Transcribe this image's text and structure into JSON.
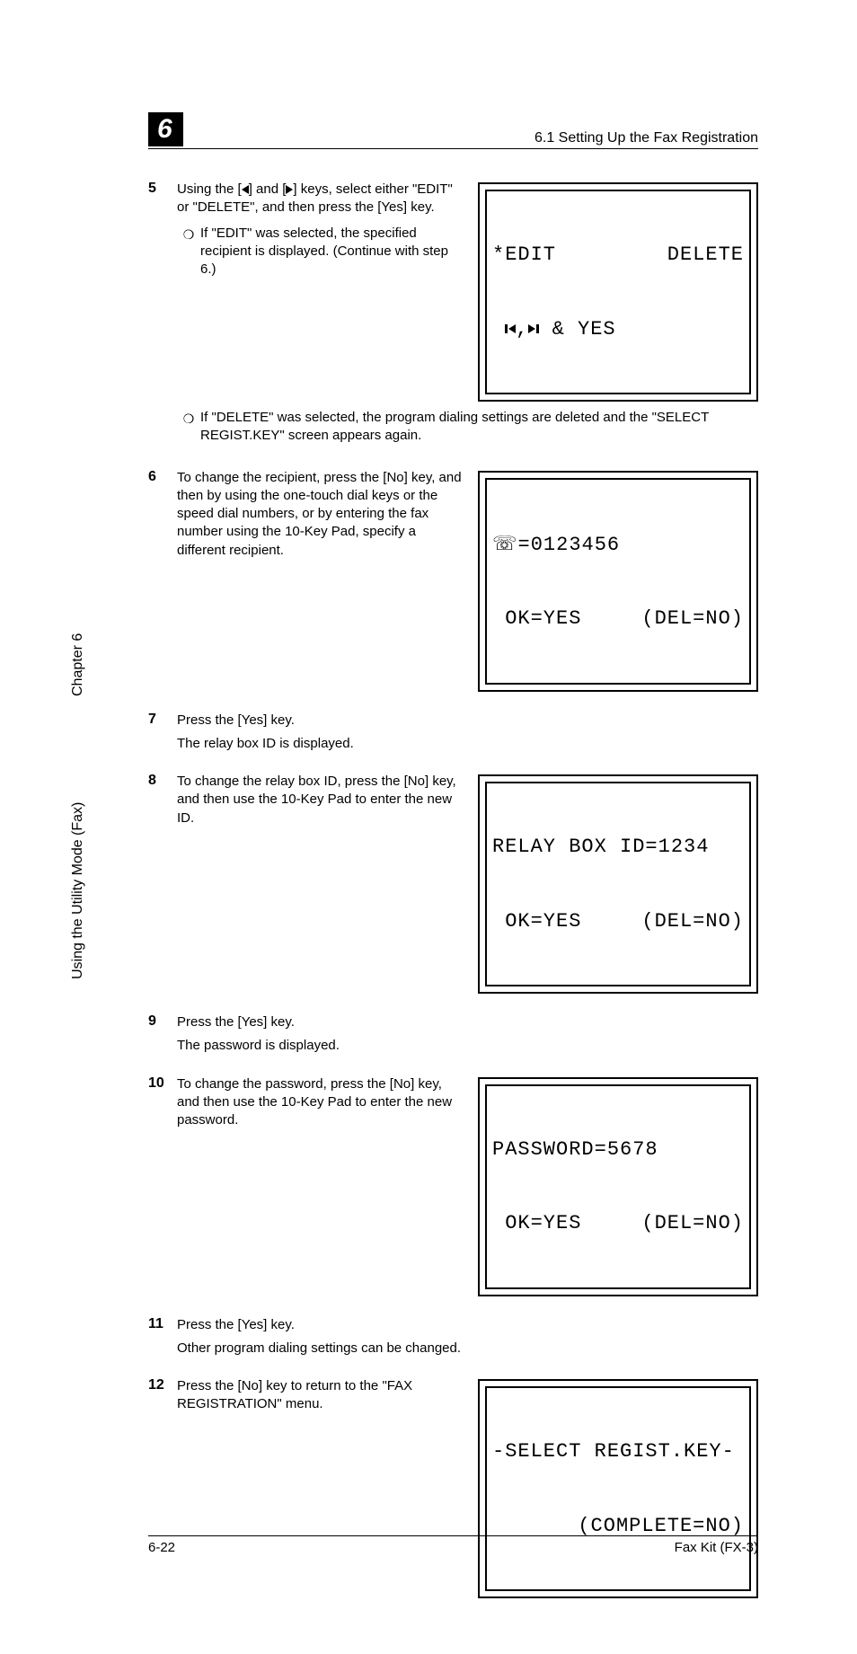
{
  "header": {
    "chapter_num": "6",
    "title": "6.1 Setting Up the Fax Registration"
  },
  "side": {
    "chapter": "Chapter 6",
    "utility": "Using the Utility Mode (Fax)"
  },
  "steps": {
    "s5": {
      "num": "5",
      "text": "Using the [◂] and [▸] keys, select either \"EDIT\" or \"DELETE\", and then press the [Yes] key.",
      "bullet_a": "If \"EDIT\" was selected, the specified recipient is displayed. (Continue with step 6.)",
      "bullet_b": "If \"DELETE\" was selected, the program dialing settings are deleted and the \"SELECT REGIST.KEY\" screen appears again.",
      "lcd_l1_left": "*EDIT",
      "lcd_l1_right": "DELETE",
      "lcd_l2": " ◂,▸ & YES"
    },
    "s6": {
      "num": "6",
      "text": "To change the recipient, press the [No] key, and then by using the one-touch dial keys or the speed dial numbers, or by entering the fax number using the 10-Key Pad, specify a different recipient.",
      "lcd_l1": "☎=0123456",
      "lcd_l2_left": " OK=YES",
      "lcd_l2_right": "(DEL=NO)"
    },
    "s7": {
      "num": "7",
      "text": "Press the [Yes] key.",
      "after": "The relay box ID is displayed."
    },
    "s8": {
      "num": "8",
      "text": "To change the relay box ID, press the [No] key, and then use the 10-Key Pad to enter the new ID.",
      "lcd_l1": "RELAY BOX ID=1234",
      "lcd_l2_left": " OK=YES",
      "lcd_l2_right": "(DEL=NO)"
    },
    "s9": {
      "num": "9",
      "text": "Press the [Yes] key.",
      "after": "The password is displayed."
    },
    "s10": {
      "num": "10",
      "text": "To change the password, press the [No] key, and then use the 10-Key Pad to enter the new password.",
      "lcd_l1": "PASSWORD=5678",
      "lcd_l2_left": " OK=YES",
      "lcd_l2_right": "(DEL=NO)"
    },
    "s11": {
      "num": "11",
      "text": "Press the [Yes] key.",
      "after": "Other program dialing settings can be changed."
    },
    "s12": {
      "num": "12",
      "text": "Press the [No] key to return to the \"FAX REGISTRATION\" menu.",
      "lcd_l1": "-SELECT REGIST.KEY-",
      "lcd_l2_right": "(COMPLETE=NO)"
    }
  },
  "footer": {
    "left": "6-22",
    "right": "Fax Kit (FX-3)"
  }
}
